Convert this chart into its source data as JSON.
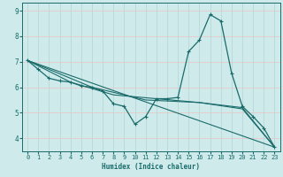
{
  "xlabel": "Humidex (Indice chaleur)",
  "bg_color": "#ceeaea",
  "grid_color": "#e8c8c8",
  "grid_color_v": "#b8d8d8",
  "line_color": "#1a6b6b",
  "xlim": [
    -0.5,
    23.5
  ],
  "ylim": [
    3.5,
    9.3
  ],
  "xticks": [
    0,
    1,
    2,
    3,
    4,
    5,
    6,
    7,
    8,
    9,
    10,
    11,
    12,
    13,
    14,
    15,
    16,
    17,
    18,
    19,
    20,
    21,
    22,
    23
  ],
  "yticks": [
    4,
    5,
    6,
    7,
    8,
    9
  ],
  "series": [
    [
      0,
      7.05
    ],
    [
      1,
      6.7
    ],
    [
      2,
      6.35
    ],
    [
      3,
      6.25
    ],
    [
      4,
      6.2
    ],
    [
      5,
      6.05
    ],
    [
      6,
      6.0
    ],
    [
      7,
      5.85
    ],
    [
      8,
      5.35
    ],
    [
      9,
      5.25
    ],
    [
      10,
      4.55
    ],
    [
      11,
      4.85
    ],
    [
      12,
      5.55
    ],
    [
      13,
      5.55
    ],
    [
      14,
      5.6
    ],
    [
      15,
      7.4
    ],
    [
      16,
      7.85
    ],
    [
      17,
      8.85
    ],
    [
      18,
      8.6
    ],
    [
      19,
      6.55
    ],
    [
      20,
      5.25
    ],
    [
      21,
      4.85
    ],
    [
      22,
      4.4
    ],
    [
      23,
      3.65
    ]
  ],
  "line_straight": [
    [
      0,
      7.05
    ],
    [
      23,
      3.65
    ]
  ],
  "line2": [
    [
      0,
      7.05
    ],
    [
      4,
      6.2
    ],
    [
      8,
      5.7
    ],
    [
      12,
      5.55
    ],
    [
      16,
      5.4
    ],
    [
      20,
      5.15
    ],
    [
      23,
      3.65
    ]
  ],
  "line3": [
    [
      0,
      7.05
    ],
    [
      6,
      6.0
    ],
    [
      11,
      5.5
    ],
    [
      16,
      5.4
    ],
    [
      20,
      5.2
    ],
    [
      23,
      3.65
    ]
  ],
  "font_family": "monospace"
}
